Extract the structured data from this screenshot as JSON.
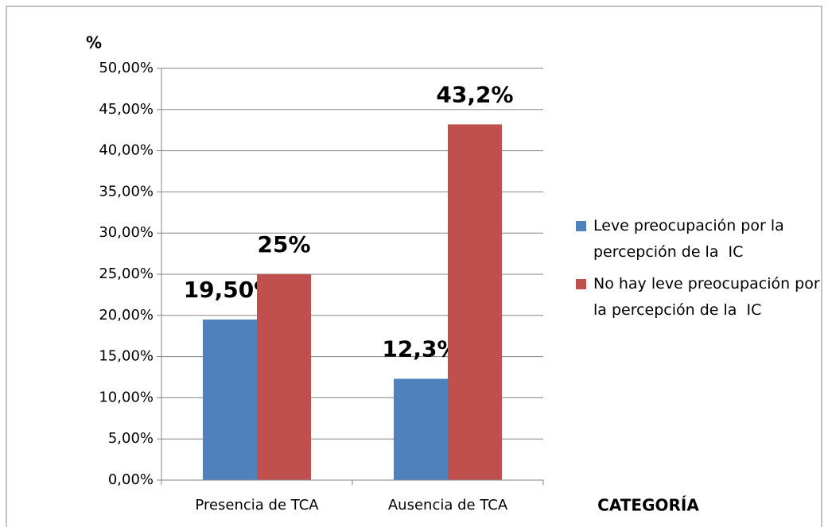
{
  "chart_data": {
    "type": "bar",
    "categories": [
      "Presencia de TCA",
      "Ausencia de TCA"
    ],
    "series": [
      {
        "name": "Leve preocupación por la percepción de la  IC",
        "color": "#4f81bd",
        "values": [
          19.5,
          12.3
        ],
        "value_labels": [
          "19,50%",
          "12,3%"
        ]
      },
      {
        "name": "No hay leve preocupación por la percepción de la  IC",
        "color": "#c0504d",
        "values": [
          25,
          43.2
        ],
        "value_labels": [
          "25%",
          "43,2%"
        ]
      }
    ],
    "y_label": "%",
    "x_label": "CATEGORÍA",
    "ylim": [
      0,
      50
    ],
    "yticks": [
      {
        "value": 0,
        "label": "0,00%"
      },
      {
        "value": 5,
        "label": "5,00%"
      },
      {
        "value": 10,
        "label": "10,00%"
      },
      {
        "value": 15,
        "label": "15,00%"
      },
      {
        "value": 20,
        "label": "20,00%"
      },
      {
        "value": 25,
        "label": "25,00%"
      },
      {
        "value": 30,
        "label": "30,00%"
      },
      {
        "value": 35,
        "label": "35,00%"
      },
      {
        "value": 40,
        "label": "40,00%"
      },
      {
        "value": 45,
        "label": "45,00%"
      },
      {
        "value": 50,
        "label": "50,00%"
      }
    ],
    "grid": true,
    "legend": "right"
  }
}
